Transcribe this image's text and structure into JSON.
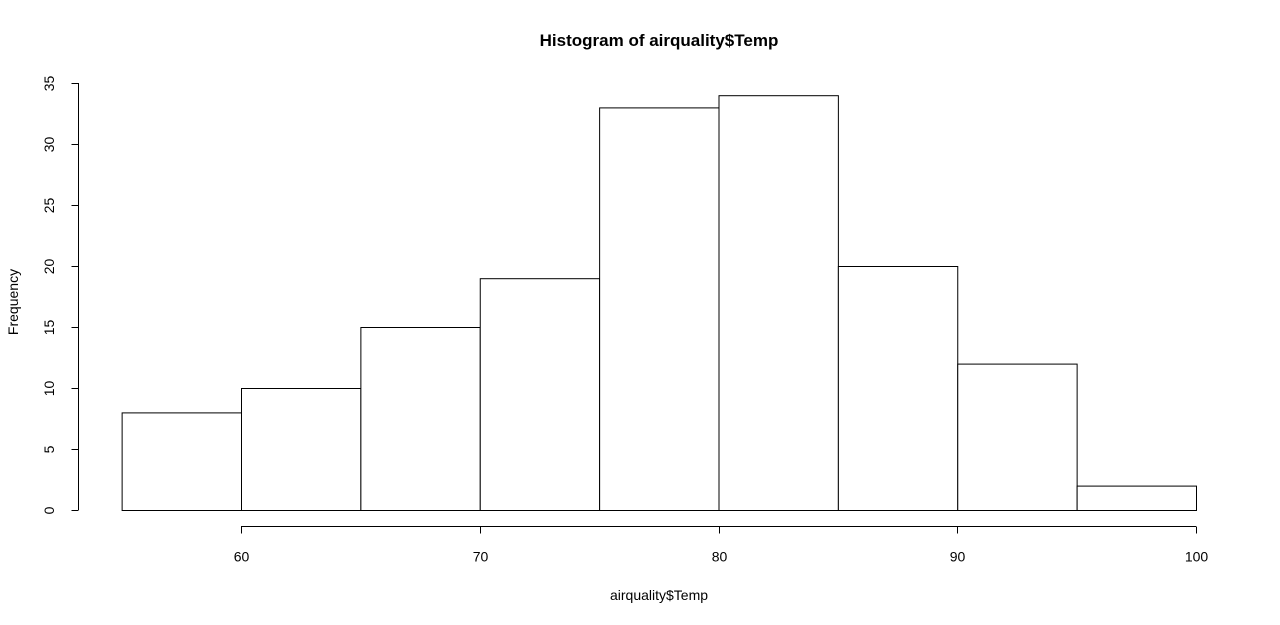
{
  "chart_data": {
    "type": "bar",
    "title": "Histogram of airquality$Temp",
    "xlabel": "airquality$Temp",
    "ylabel": "Frequency",
    "bins": [
      {
        "from": 55,
        "to": 60,
        "count": 8
      },
      {
        "from": 60,
        "to": 65,
        "count": 10
      },
      {
        "from": 65,
        "to": 70,
        "count": 15
      },
      {
        "from": 70,
        "to": 75,
        "count": 19
      },
      {
        "from": 75,
        "to": 80,
        "count": 33
      },
      {
        "from": 80,
        "to": 85,
        "count": 34
      },
      {
        "from": 85,
        "to": 90,
        "count": 20
      },
      {
        "from": 90,
        "to": 95,
        "count": 12
      },
      {
        "from": 95,
        "to": 100,
        "count": 2
      }
    ],
    "xticks": [
      60,
      70,
      80,
      90,
      100
    ],
    "yticks": [
      0,
      5,
      10,
      15,
      20,
      25,
      30,
      35
    ],
    "xlim": [
      60,
      100
    ],
    "ylim": [
      0,
      35
    ],
    "grid": false,
    "colors": {
      "bar_fill": "#ffffff",
      "bar_stroke": "#000000"
    }
  }
}
